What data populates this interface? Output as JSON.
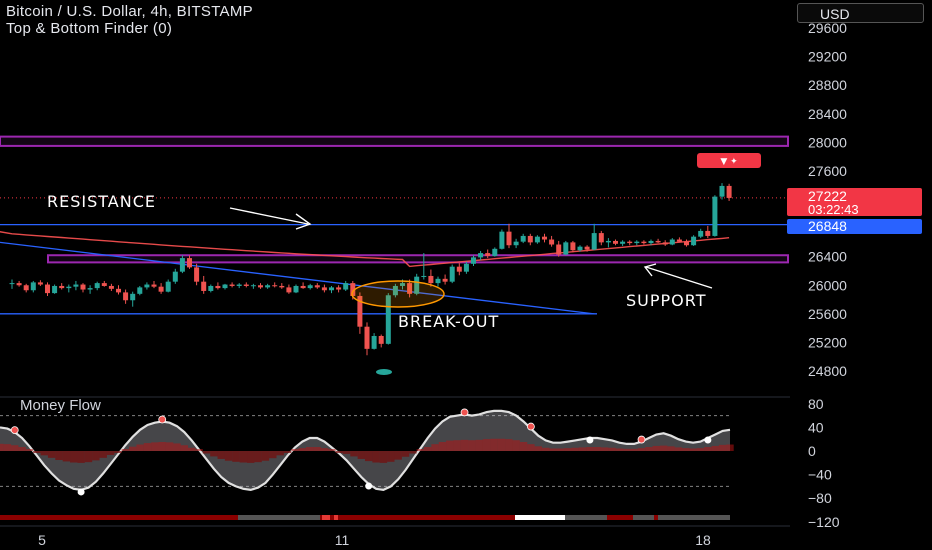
{
  "header": {
    "title": "Bitcoin / U.S. Dollar, 4h, BITSTAMP",
    "indicator": "Top & Bottom Finder (0)",
    "currency": "USD"
  },
  "colors": {
    "up": "#26a69a",
    "down": "#ef5350",
    "level_line": "#2962ff",
    "zone": "#9c27b0",
    "ma": "#ff5252",
    "price_badge": "#f23645",
    "level_badge": "#2962ff"
  },
  "chart_data": [
    {
      "type": "candlestick",
      "title": "Bitcoin / U.S. Dollar, 4h, BITSTAMP",
      "ylim": [
        24600,
        29800
      ],
      "y_ticks": [
        "29600",
        "29200",
        "28800",
        "28400",
        "28000",
        "27600",
        "27200",
        "26800",
        "26400",
        "26000",
        "25600",
        "25200",
        "24800"
      ],
      "x_ticks": [
        "5",
        "11",
        "18"
      ],
      "x_tick_positions_bar": [
        4,
        48,
        96
      ],
      "grid": false,
      "last_price": "27222",
      "countdown": "03:22:43",
      "level_label": "26848",
      "levels": [
        {
          "name": "resistance",
          "price": 26848
        },
        {
          "name": "support",
          "price": 25600
        }
      ],
      "zones": [
        {
          "name": "upper-zone",
          "from": 27950,
          "to": 28080
        },
        {
          "name": "lower-zone",
          "from": 26320,
          "to": 26420
        }
      ],
      "annotations": [
        "RESISTANCE",
        "SUPPORT",
        "BREAK-OUT"
      ],
      "trendline": {
        "from": [
          0,
          26600
        ],
        "to": [
          82,
          25600
        ]
      },
      "candles": [
        [
          26020,
          26080,
          25950,
          26030
        ],
        [
          26030,
          26060,
          25980,
          26000
        ],
        [
          26000,
          26020,
          25900,
          25930
        ],
        [
          25930,
          26060,
          25900,
          26040
        ],
        [
          26040,
          26070,
          25990,
          26010
        ],
        [
          26010,
          26040,
          25850,
          25890
        ],
        [
          25890,
          26010,
          25880,
          25990
        ],
        [
          25990,
          26030,
          25940,
          25960
        ],
        [
          25960,
          26010,
          25900,
          25980
        ],
        [
          25980,
          26060,
          25930,
          26010
        ],
        [
          26010,
          26030,
          25900,
          25940
        ],
        [
          25940,
          26000,
          25880,
          25960
        ],
        [
          25960,
          26050,
          25930,
          26030
        ],
        [
          26030,
          26060,
          25980,
          25990
        ],
        [
          25990,
          26020,
          25920,
          25950
        ],
        [
          25950,
          26000,
          25870,
          25900
        ],
        [
          25900,
          25940,
          25740,
          25790
        ],
        [
          25790,
          25910,
          25700,
          25880
        ],
        [
          25880,
          25990,
          25860,
          25970
        ],
        [
          25970,
          26040,
          25940,
          26010
        ],
        [
          26010,
          26060,
          25960,
          25980
        ],
        [
          25980,
          26030,
          25880,
          25910
        ],
        [
          25910,
          26080,
          25900,
          26050
        ],
        [
          26050,
          26230,
          26020,
          26190
        ],
        [
          26190,
          26420,
          26170,
          26380
        ],
        [
          26380,
          26420,
          26230,
          26250
        ],
        [
          26250,
          26300,
          26000,
          26050
        ],
        [
          26050,
          26130,
          25880,
          25920
        ],
        [
          25920,
          26010,
          25900,
          25990
        ],
        [
          25990,
          26040,
          25940,
          25960
        ],
        [
          25960,
          26020,
          25940,
          26010
        ],
        [
          26010,
          26040,
          25970,
          25990
        ],
        [
          25990,
          26030,
          25960,
          26010
        ],
        [
          26010,
          26040,
          25970,
          25990
        ],
        [
          25990,
          26020,
          25950,
          26000
        ],
        [
          26000,
          26030,
          25950,
          25970
        ],
        [
          25970,
          26020,
          25950,
          26000
        ],
        [
          26000,
          26040,
          25970,
          25990
        ],
        [
          25990,
          26030,
          25950,
          25970
        ],
        [
          25970,
          26010,
          25880,
          25900
        ],
        [
          25900,
          26010,
          25890,
          25990
        ],
        [
          25990,
          26040,
          25950,
          25960
        ],
        [
          25960,
          26020,
          25940,
          26000
        ],
        [
          26000,
          26030,
          25950,
          25970
        ],
        [
          25970,
          26010,
          25900,
          25930
        ],
        [
          25930,
          25990,
          25890,
          25970
        ],
        [
          25970,
          26000,
          25900,
          25940
        ],
        [
          25940,
          26060,
          25920,
          26030
        ],
        [
          26030,
          26060,
          25800,
          25850
        ],
        [
          25850,
          25900,
          25320,
          25420
        ],
        [
          25420,
          25480,
          25020,
          25110
        ],
        [
          25110,
          25330,
          25100,
          25290
        ],
        [
          25290,
          25310,
          25130,
          25180
        ],
        [
          25180,
          25890,
          25170,
          25860
        ],
        [
          25860,
          26020,
          25830,
          25990
        ],
        [
          25990,
          26080,
          25940,
          26030
        ],
        [
          26030,
          26080,
          25830,
          25880
        ],
        [
          25880,
          26160,
          25860,
          26120
        ],
        [
          26120,
          26450,
          26080,
          26130
        ],
        [
          26130,
          26220,
          25980,
          26030
        ],
        [
          26030,
          26120,
          25980,
          26090
        ],
        [
          26090,
          26150,
          26010,
          26050
        ],
        [
          26050,
          26290,
          26030,
          26260
        ],
        [
          26260,
          26310,
          26140,
          26190
        ],
        [
          26190,
          26330,
          26160,
          26300
        ],
        [
          26300,
          26420,
          26270,
          26390
        ],
        [
          26390,
          26480,
          26350,
          26450
        ],
        [
          26450,
          26500,
          26380,
          26410
        ],
        [
          26410,
          26530,
          26400,
          26510
        ],
        [
          26510,
          26780,
          26500,
          26750
        ],
        [
          26750,
          26860,
          26520,
          26560
        ],
        [
          26560,
          26650,
          26520,
          26610
        ],
        [
          26610,
          26720,
          26590,
          26690
        ],
        [
          26690,
          26720,
          26560,
          26600
        ],
        [
          26600,
          26700,
          26580,
          26680
        ],
        [
          26680,
          26720,
          26600,
          26640
        ],
        [
          26640,
          26690,
          26540,
          26570
        ],
        [
          26570,
          26620,
          26400,
          26430
        ],
        [
          26430,
          26620,
          26420,
          26600
        ],
        [
          26600,
          26620,
          26460,
          26490
        ],
        [
          26490,
          26560,
          26470,
          26540
        ],
        [
          26540,
          26560,
          26470,
          26500
        ],
        [
          26500,
          26860,
          26490,
          26730
        ],
        [
          26730,
          26760,
          26560,
          26600
        ],
        [
          26600,
          26660,
          26530,
          26620
        ],
        [
          26620,
          26640,
          26560,
          26580
        ],
        [
          26580,
          26630,
          26550,
          26610
        ],
        [
          26610,
          26630,
          26560,
          26590
        ],
        [
          26590,
          26630,
          26560,
          26610
        ],
        [
          26610,
          26630,
          26570,
          26590
        ],
        [
          26590,
          26640,
          26560,
          26620
        ],
        [
          26620,
          26650,
          26590,
          26600
        ],
        [
          26600,
          26630,
          26550,
          26570
        ],
        [
          26570,
          26660,
          26560,
          26640
        ],
        [
          26640,
          26670,
          26600,
          26610
        ],
        [
          26610,
          26640,
          26540,
          26560
        ],
        [
          26560,
          26700,
          26550,
          26680
        ],
        [
          26680,
          26790,
          26660,
          26760
        ],
        [
          26760,
          26830,
          26660,
          26690
        ],
        [
          26690,
          27260,
          26680,
          27240
        ],
        [
          27240,
          27430,
          27200,
          27390
        ],
        [
          27390,
          27420,
          27180,
          27222
        ]
      ]
    },
    {
      "type": "area",
      "title": "Money Flow",
      "ylim": [
        -125,
        90
      ],
      "y_ticks": [
        "80",
        "40",
        "0",
        "−40",
        "−80",
        "−120"
      ],
      "bands": [
        60,
        -60
      ],
      "series": [
        {
          "name": "Money Flow",
          "values": [
            40,
            38,
            32,
            22,
            8,
            -8,
            -24,
            -38,
            -50,
            -58,
            -64,
            -66,
            -62,
            -52,
            -38,
            -22,
            -6,
            10,
            24,
            36,
            44,
            48,
            50,
            48,
            42,
            32,
            18,
            2,
            -14,
            -30,
            -44,
            -54,
            -60,
            -64,
            -66,
            -62,
            -54,
            -40,
            -24,
            -8,
            6,
            16,
            22,
            22,
            16,
            6,
            -4,
            -16,
            -30,
            -44,
            -56,
            -64,
            -66,
            -60,
            -48,
            -32,
            -14,
            4,
            22,
            38,
            50,
            58,
            60,
            62,
            60,
            62,
            66,
            68,
            68,
            66,
            60,
            50,
            38,
            26,
            18,
            14,
            14,
            16,
            18,
            20,
            22,
            22,
            20,
            18,
            14,
            12,
            12,
            16,
            22,
            28,
            30,
            26,
            20,
            16,
            14,
            16,
            22,
            28,
            34,
            36
          ]
        }
      ],
      "signal_tops": [
        2,
        22,
        63,
        72,
        87
      ],
      "signal_bottoms": [
        11,
        50,
        80,
        96
      ]
    }
  ]
}
